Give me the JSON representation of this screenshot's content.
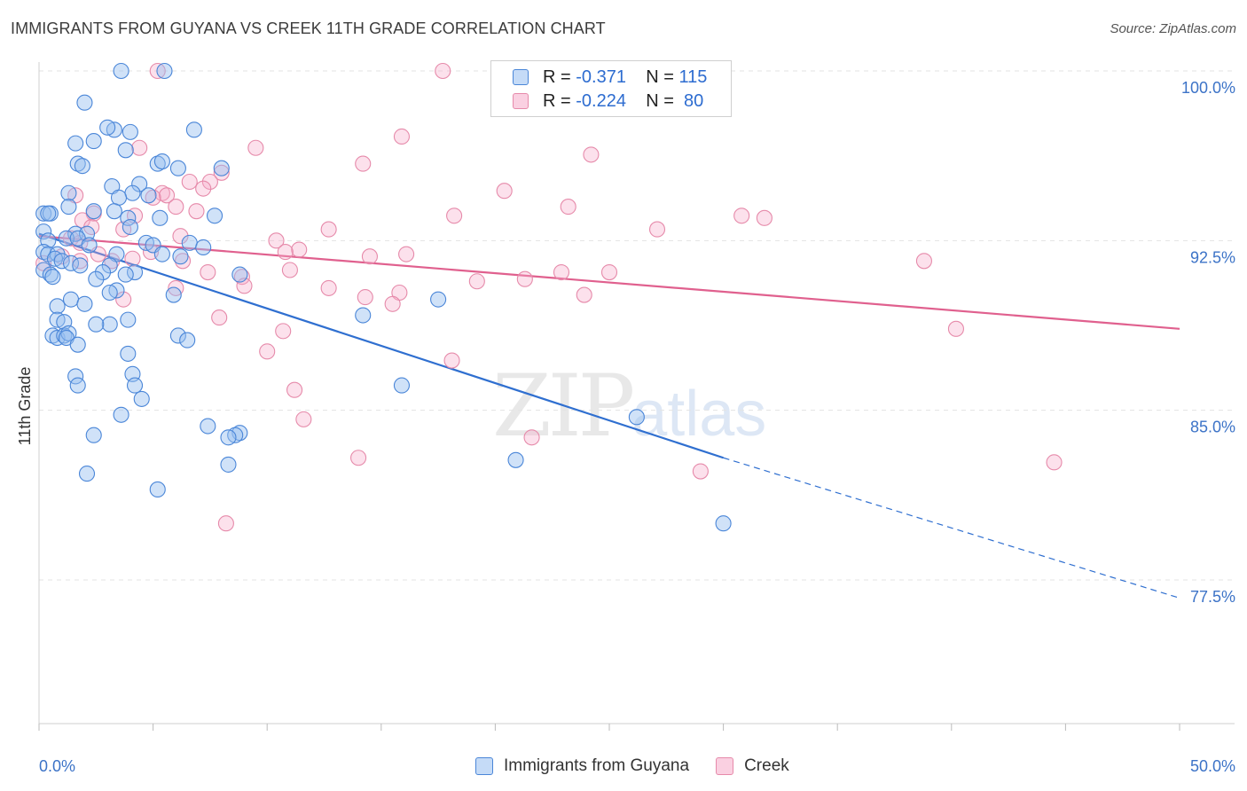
{
  "title": "IMMIGRANTS FROM GUYANA VS CREEK 11TH GRADE CORRELATION CHART",
  "source": "Source: ZipAtlas.com",
  "watermark_zip": "ZIP",
  "watermark_atlas": "atlas",
  "legend": {
    "r_label": "R =",
    "n_label": "N =",
    "series": [
      {
        "r": "-0.371",
        "n": "115"
      },
      {
        "r": "-0.224",
        "n": "80"
      }
    ]
  },
  "colors": {
    "blue_fill": "rgba(150,190,240,0.45)",
    "blue_stroke": "#4a86d8",
    "blue_line": "#2f6fd0",
    "pink_fill": "rgba(245,170,200,0.35)",
    "pink_stroke": "#e68aaa",
    "pink_line": "#e0608e",
    "tick_text": "#3c73c7"
  },
  "chart_data": {
    "type": "scatter",
    "title": "IMMIGRANTS FROM GUYANA VS CREEK 11TH GRADE CORRELATION CHART",
    "xlabel": "",
    "ylabel": "11th Grade",
    "xlim": [
      0,
      50
    ],
    "ylim": [
      70,
      101
    ],
    "x_tick_labels": [
      "0.0%",
      "50.0%"
    ],
    "y_ticks": [
      77.5,
      85.0,
      92.5,
      100.0
    ],
    "y_tick_labels": [
      "77.5%",
      "85.0%",
      "92.5%",
      "100.0%"
    ],
    "grid": true,
    "legend_position": "top-center",
    "series": [
      {
        "name": "Immigrants from Guyana",
        "r": -0.371,
        "n": 115,
        "trend": {
          "x0": 0,
          "y0": 92.8,
          "x1": 30,
          "y1": 82.9,
          "dashed_to_x": 50,
          "dashed_to_y": 76.7
        },
        "points": [
          [
            3.6,
            100
          ],
          [
            5.5,
            100
          ],
          [
            2.0,
            98.6
          ],
          [
            3.3,
            97.4
          ],
          [
            3.0,
            97.5
          ],
          [
            4.0,
            97.3
          ],
          [
            6.8,
            97.4
          ],
          [
            1.6,
            96.8
          ],
          [
            2.4,
            96.9
          ],
          [
            3.8,
            96.5
          ],
          [
            1.7,
            95.9
          ],
          [
            1.9,
            95.8
          ],
          [
            5.2,
            95.9
          ],
          [
            6.1,
            95.7
          ],
          [
            8.0,
            95.7
          ],
          [
            5.4,
            96.0
          ],
          [
            3.2,
            94.9
          ],
          [
            4.4,
            95.0
          ],
          [
            4.1,
            94.6
          ],
          [
            1.3,
            94.6
          ],
          [
            4.8,
            94.5
          ],
          [
            3.5,
            94.4
          ],
          [
            1.3,
            94.0
          ],
          [
            2.4,
            93.8
          ],
          [
            0.2,
            93.7
          ],
          [
            0.5,
            93.7
          ],
          [
            0.4,
            93.7
          ],
          [
            3.3,
            93.8
          ],
          [
            3.9,
            93.5
          ],
          [
            5.3,
            93.5
          ],
          [
            7.7,
            93.6
          ],
          [
            4.0,
            93.1
          ],
          [
            0.2,
            92.9
          ],
          [
            1.6,
            92.8
          ],
          [
            2.1,
            92.8
          ],
          [
            1.2,
            92.6
          ],
          [
            0.4,
            92.5
          ],
          [
            1.7,
            92.6
          ],
          [
            2.2,
            92.3
          ],
          [
            4.7,
            92.4
          ],
          [
            5.0,
            92.3
          ],
          [
            6.6,
            92.4
          ],
          [
            7.2,
            92.2
          ],
          [
            0.2,
            92.0
          ],
          [
            0.4,
            91.9
          ],
          [
            0.8,
            91.9
          ],
          [
            3.4,
            91.9
          ],
          [
            5.4,
            91.9
          ],
          [
            0.7,
            91.7
          ],
          [
            1.0,
            91.6
          ],
          [
            1.4,
            91.5
          ],
          [
            1.8,
            91.4
          ],
          [
            3.1,
            91.4
          ],
          [
            6.2,
            91.8
          ],
          [
            0.2,
            91.2
          ],
          [
            0.5,
            91.0
          ],
          [
            0.6,
            90.9
          ],
          [
            2.8,
            91.1
          ],
          [
            4.2,
            91.1
          ],
          [
            3.8,
            91.0
          ],
          [
            8.8,
            91.0
          ],
          [
            2.5,
            90.8
          ],
          [
            3.4,
            90.3
          ],
          [
            3.1,
            90.2
          ],
          [
            5.9,
            90.1
          ],
          [
            0.8,
            89.6
          ],
          [
            1.4,
            89.9
          ],
          [
            2.0,
            89.7
          ],
          [
            17.5,
            89.9
          ],
          [
            0.8,
            89.0
          ],
          [
            1.1,
            88.9
          ],
          [
            3.9,
            89.0
          ],
          [
            3.1,
            88.8
          ],
          [
            2.5,
            88.8
          ],
          [
            0.6,
            88.3
          ],
          [
            0.8,
            88.2
          ],
          [
            1.1,
            88.3
          ],
          [
            1.3,
            88.4
          ],
          [
            1.2,
            88.2
          ],
          [
            6.1,
            88.3
          ],
          [
            6.5,
            88.1
          ],
          [
            1.7,
            87.9
          ],
          [
            3.9,
            87.5
          ],
          [
            4.1,
            86.6
          ],
          [
            1.6,
            86.5
          ],
          [
            4.2,
            86.1
          ],
          [
            1.7,
            86.1
          ],
          [
            15.9,
            86.1
          ],
          [
            4.5,
            85.5
          ],
          [
            3.6,
            84.8
          ],
          [
            26.2,
            84.7
          ],
          [
            7.4,
            84.3
          ],
          [
            8.8,
            84.0
          ],
          [
            8.6,
            83.9
          ],
          [
            8.3,
            83.8
          ],
          [
            2.4,
            83.9
          ],
          [
            20.9,
            82.8
          ],
          [
            8.3,
            82.6
          ],
          [
            2.1,
            82.2
          ],
          [
            5.2,
            81.5
          ],
          [
            30.0,
            80.0
          ],
          [
            14.2,
            89.2
          ]
        ]
      },
      {
        "name": "Creek",
        "r": -0.224,
        "n": 80,
        "trend": {
          "x0": 0,
          "y0": 92.7,
          "x1": 50,
          "y1": 88.6
        },
        "points": [
          [
            5.2,
            100
          ],
          [
            17.7,
            100
          ],
          [
            15.9,
            97.1
          ],
          [
            9.5,
            96.6
          ],
          [
            24.2,
            96.3
          ],
          [
            4.4,
            96.6
          ],
          [
            14.2,
            95.9
          ],
          [
            8.0,
            95.5
          ],
          [
            7.5,
            95.1
          ],
          [
            6.6,
            95.1
          ],
          [
            20.4,
            94.7
          ],
          [
            7.2,
            94.8
          ],
          [
            5.4,
            94.6
          ],
          [
            5.6,
            94.5
          ],
          [
            1.6,
            94.5
          ],
          [
            5.0,
            94.4
          ],
          [
            23.2,
            94.0
          ],
          [
            30.8,
            93.6
          ],
          [
            31.8,
            93.5
          ],
          [
            18.2,
            93.6
          ],
          [
            6.9,
            93.8
          ],
          [
            2.4,
            93.7
          ],
          [
            1.9,
            93.4
          ],
          [
            4.2,
            93.6
          ],
          [
            27.1,
            93.0
          ],
          [
            12.7,
            93.0
          ],
          [
            3.7,
            93.0
          ],
          [
            2.3,
            93.1
          ],
          [
            1.4,
            92.6
          ],
          [
            1.8,
            92.4
          ],
          [
            6.2,
            92.7
          ],
          [
            10.4,
            92.5
          ],
          [
            11.4,
            92.1
          ],
          [
            10.8,
            92.0
          ],
          [
            4.9,
            92.0
          ],
          [
            2.6,
            91.9
          ],
          [
            4.1,
            91.7
          ],
          [
            1.0,
            91.8
          ],
          [
            1.8,
            91.6
          ],
          [
            14.5,
            91.8
          ],
          [
            16.1,
            91.9
          ],
          [
            0.2,
            91.5
          ],
          [
            3.2,
            91.6
          ],
          [
            6.3,
            91.6
          ],
          [
            11.0,
            91.2
          ],
          [
            7.4,
            91.1
          ],
          [
            22.9,
            91.1
          ],
          [
            25.0,
            91.1
          ],
          [
            8.9,
            90.9
          ],
          [
            21.3,
            90.8
          ],
          [
            19.2,
            90.7
          ],
          [
            9.0,
            90.5
          ],
          [
            12.7,
            90.4
          ],
          [
            6.0,
            90.4
          ],
          [
            15.8,
            90.2
          ],
          [
            14.3,
            90.0
          ],
          [
            23.9,
            90.1
          ],
          [
            3.7,
            89.9
          ],
          [
            15.5,
            89.7
          ],
          [
            7.9,
            89.1
          ],
          [
            10.7,
            88.5
          ],
          [
            38.8,
            91.6
          ],
          [
            40.2,
            88.6
          ],
          [
            10.0,
            87.6
          ],
          [
            18.1,
            87.2
          ],
          [
            11.2,
            85.9
          ],
          [
            11.6,
            84.6
          ],
          [
            21.6,
            83.8
          ],
          [
            14.0,
            82.9
          ],
          [
            29.0,
            82.3
          ],
          [
            44.5,
            82.7
          ],
          [
            8.2,
            80.0
          ],
          [
            6.0,
            94.0
          ]
        ]
      }
    ]
  },
  "bottom_legend": [
    "Immigrants from Guyana",
    "Creek"
  ]
}
